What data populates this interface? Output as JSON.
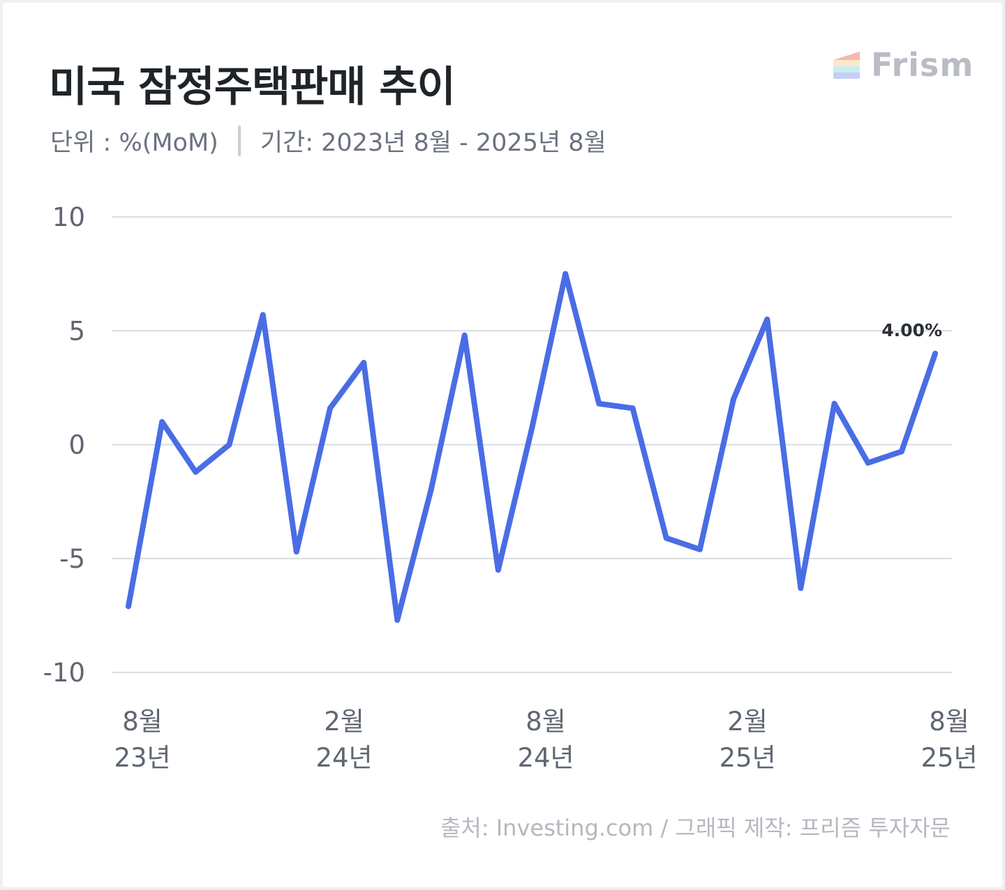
{
  "header": {
    "title": "미국 잠정주택판매 추이",
    "unit": "단위 : %(MoM)",
    "period": "기간: 2023년 8월 - 2025년 8월"
  },
  "brand": {
    "name": "Frism",
    "icon": "frism-logo-icon"
  },
  "footer": {
    "source": "출처: Investing.com / 그래픽 제작: 프리즘 투자자문"
  },
  "colors": {
    "line": "#4a6de5",
    "grid": "#d9dce1",
    "axis_text": "#5f6672",
    "annotation": "#2b2f36"
  },
  "chart_data": {
    "type": "line",
    "title": "미국 잠정주택판매 추이",
    "xlabel": "",
    "ylabel": "",
    "ylim": [
      -10,
      10
    ],
    "yticks": [
      10,
      5,
      0,
      -5,
      -10
    ],
    "grid": true,
    "x": [
      "23년 8월",
      "23년 9월",
      "23년 10월",
      "23년 11월",
      "23년 12월",
      "24년 1월",
      "24년 2월",
      "24년 3월",
      "24년 4월",
      "24년 5월",
      "24년 6월",
      "24년 7월",
      "24년 8월",
      "24년 9월",
      "24년 10월",
      "24년 11월",
      "24년 12월",
      "25년 1월",
      "25년 2월",
      "25년 3월",
      "25년 4월",
      "25년 5월",
      "25년 6월",
      "25년 7월",
      "25년 8월"
    ],
    "xticks": [
      {
        "index": 0,
        "month": "8월",
        "year": "23년"
      },
      {
        "index": 6,
        "month": "2월",
        "year": "24년"
      },
      {
        "index": 12,
        "month": "8월",
        "year": "24년"
      },
      {
        "index": 18,
        "month": "2월",
        "year": "25년"
      },
      {
        "index": 24,
        "month": "8월",
        "year": "25년"
      }
    ],
    "series": [
      {
        "values": [
          -7.1,
          1.0,
          -1.2,
          0.0,
          5.7,
          -4.7,
          1.6,
          3.6,
          -7.7,
          -2.0,
          4.8,
          -5.5,
          0.7,
          7.5,
          1.8,
          1.6,
          -4.1,
          -4.6,
          2.0,
          5.5,
          -6.3,
          1.8,
          -0.8,
          -0.3,
          4.0
        ]
      }
    ],
    "annotations": [
      {
        "index": 24,
        "text": "4.00%"
      }
    ]
  }
}
